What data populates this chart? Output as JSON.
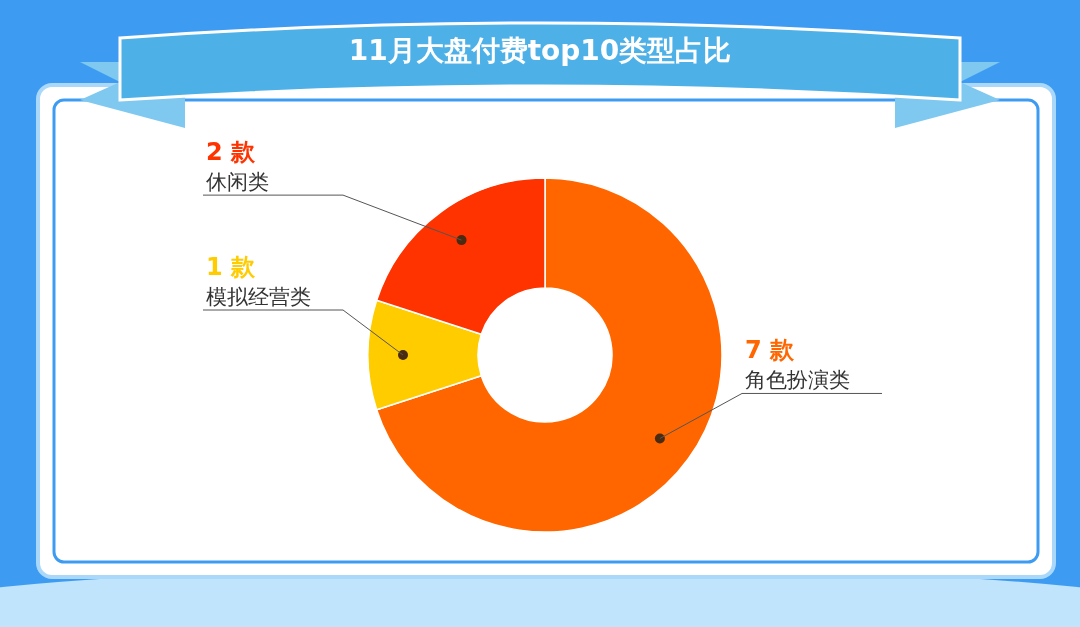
{
  "chart_data": {
    "type": "donut",
    "title": "11月大盘付费top10类型占比",
    "categories": [
      "角色扮演类",
      "模拟经营类",
      "休闲类"
    ],
    "values": [
      7,
      1,
      2
    ],
    "colors": [
      "#ff6600",
      "#ffcc00",
      "#ff3300"
    ],
    "value_labels": [
      "7 款",
      "1 款",
      "2 款"
    ]
  }
}
